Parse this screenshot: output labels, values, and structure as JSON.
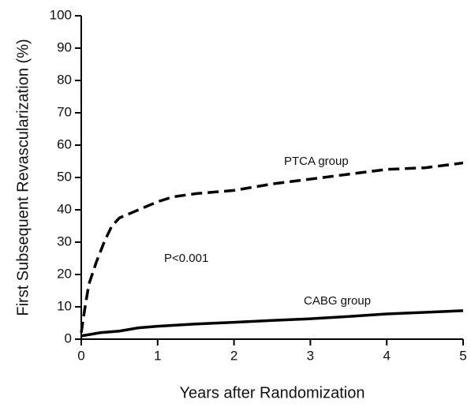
{
  "chart_data": {
    "type": "line",
    "x_label": "Years after Randomization",
    "y_label": "First Subsequent Revascularization (%)",
    "xlim": [
      0,
      5
    ],
    "ylim": [
      0,
      100
    ],
    "xticks": [
      0,
      1,
      2,
      3,
      4,
      5
    ],
    "yticks": [
      0,
      10,
      20,
      30,
      40,
      50,
      60,
      70,
      80,
      90,
      100
    ],
    "series": [
      {
        "name": "PTCA group",
        "color": "#000000",
        "line_style": "dashed",
        "x": [
          0,
          0.05,
          0.1,
          0.2,
          0.3,
          0.4,
          0.5,
          0.7,
          1,
          1.2,
          1.5,
          2,
          2.5,
          3,
          3.5,
          4,
          4.5,
          5
        ],
        "values": [
          2,
          10,
          17,
          24,
          30,
          35,
          37.5,
          39.5,
          42.5,
          44,
          45,
          46,
          48,
          49.5,
          51,
          52.5,
          53,
          54.5
        ]
      },
      {
        "name": "CABG group",
        "color": "#000000",
        "line_style": "solid",
        "x": [
          0,
          0.25,
          0.5,
          0.75,
          1,
          1.5,
          2,
          2.5,
          3,
          3.5,
          4,
          4.5,
          5
        ],
        "values": [
          1,
          2,
          2.5,
          3.5,
          4,
          4.7,
          5.2,
          5.8,
          6.3,
          7,
          7.8,
          8.3,
          8.8
        ]
      }
    ],
    "annotations": [
      "P<0.001"
    ]
  }
}
